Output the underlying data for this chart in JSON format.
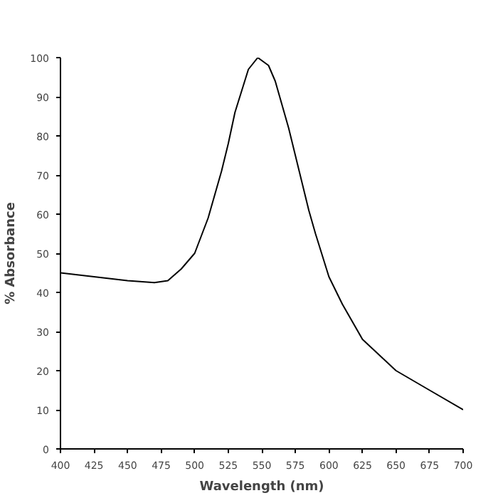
{
  "chart_data": {
    "type": "line",
    "xlabel": "Wavelength (nm)",
    "ylabel": "% Absorbance",
    "x": [
      400,
      425,
      450,
      470,
      480,
      490,
      500,
      510,
      520,
      525,
      530,
      540,
      547,
      555,
      560,
      570,
      575,
      585,
      590,
      600,
      610,
      625,
      650,
      675,
      700
    ],
    "series": [
      {
        "color": "#000000",
        "values": [
          45,
          44,
          43,
          42.5,
          43,
          46,
          50,
          59,
          71,
          78,
          86,
          97,
          100,
          98,
          94,
          82,
          75,
          61,
          55,
          44,
          37,
          28,
          20,
          15,
          10
        ]
      }
    ],
    "xlim": [
      400,
      700
    ],
    "ylim": [
      0,
      100
    ],
    "xticks": [
      400,
      425,
      450,
      475,
      500,
      525,
      550,
      575,
      600,
      625,
      650,
      675,
      700
    ],
    "yticks": [
      0,
      10,
      20,
      30,
      40,
      50,
      60,
      70,
      80,
      90,
      100
    ],
    "grid": false
  }
}
